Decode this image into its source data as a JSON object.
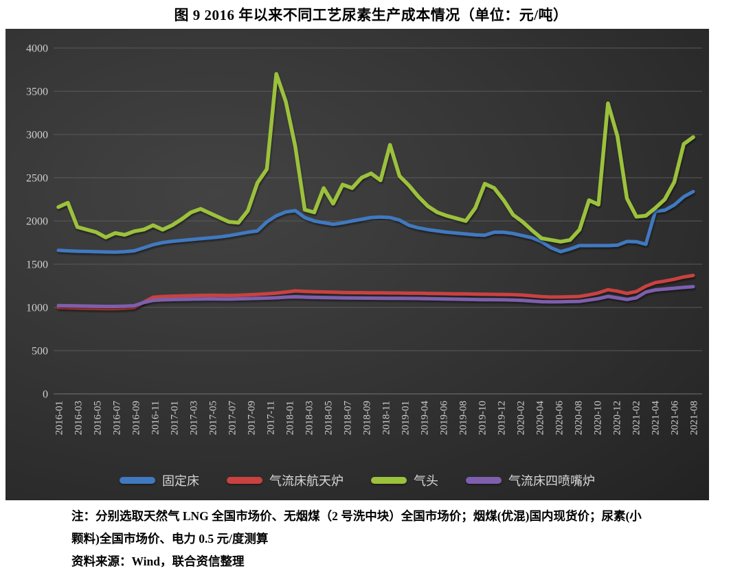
{
  "title": "图 9  2016 年以来不同工艺尿素生产成本情况（单位：元/吨）",
  "notes": {
    "line1": "注：分别选取天然气 LNG 全国市场价、无烟煤（2 号洗中块）全国市场价；烟煤(优混)国内现货价；尿素(小",
    "line2": "颗料)全国市场价、电力 0.5 元/度测算",
    "source": "资料来源：Wind，联合资信整理"
  },
  "colors": {
    "panel_bg_center": "#434343",
    "panel_bg_edge": "#222222",
    "grid": "#5a5a5a",
    "axis_line": "#747474",
    "axis_text": "#cfcfcf",
    "legend_text": "#d8d8d8",
    "title_text": "#000000"
  },
  "chart_data": {
    "type": "line",
    "title": "图 9  2016 年以来不同工艺尿素生产成本情况（单位：元/吨）",
    "xlabel": "",
    "ylabel": "元/吨",
    "ylim": [
      0,
      4000
    ],
    "ytick_step": 500,
    "grid": true,
    "legend_position": "bottom",
    "x_tick_labels": [
      "2016-01",
      "2016-03",
      "2016-05",
      "2016-07",
      "2016-09",
      "2016-11",
      "2017-01",
      "2017-03",
      "2017-05",
      "2017-07",
      "2017-09",
      "2017-11",
      "2018-01",
      "2018-03",
      "2018-05",
      "2018-07",
      "2018-09",
      "2018-11",
      "2019-01",
      "2019-04",
      "2019-06",
      "2019-08",
      "2019-10",
      "2019-12",
      "2020-02",
      "2020-04",
      "2020-06",
      "2020-08",
      "2020-10",
      "2020-12",
      "2021-02",
      "2021-04",
      "2021-06",
      "2021-08"
    ],
    "x": [
      "2016-01",
      "2016-02",
      "2016-03",
      "2016-04",
      "2016-05",
      "2016-06",
      "2016-07",
      "2016-08",
      "2016-09",
      "2016-10",
      "2016-11",
      "2016-12",
      "2017-01",
      "2017-02",
      "2017-03",
      "2017-04",
      "2017-05",
      "2017-06",
      "2017-07",
      "2017-08",
      "2017-09",
      "2017-10",
      "2017-11",
      "2017-12",
      "2018-01",
      "2018-02",
      "2018-03",
      "2018-04",
      "2018-05",
      "2018-06",
      "2018-07",
      "2018-08",
      "2018-09",
      "2018-10",
      "2018-11",
      "2018-12",
      "2019-01",
      "2019-02",
      "2019-03",
      "2019-04",
      "2019-05",
      "2019-06",
      "2019-07",
      "2019-08",
      "2019-09",
      "2019-10",
      "2019-11",
      "2019-12",
      "2020-01",
      "2020-02",
      "2020-03",
      "2020-04",
      "2020-05",
      "2020-06",
      "2020-07",
      "2020-08",
      "2020-09",
      "2020-10",
      "2020-11",
      "2020-12",
      "2021-01",
      "2021-02",
      "2021-03",
      "2021-04",
      "2021-05",
      "2021-06",
      "2021-07",
      "2021-08"
    ],
    "series": [
      {
        "name": "固定床",
        "color": "#4079c0",
        "values": [
          1660,
          1655,
          1650,
          1648,
          1645,
          1642,
          1640,
          1645,
          1655,
          1690,
          1725,
          1750,
          1765,
          1775,
          1785,
          1795,
          1805,
          1815,
          1830,
          1850,
          1870,
          1885,
          1990,
          2060,
          2105,
          2120,
          2040,
          2000,
          1980,
          1962,
          1978,
          2000,
          2020,
          2040,
          2045,
          2040,
          2010,
          1950,
          1920,
          1900,
          1885,
          1870,
          1860,
          1850,
          1840,
          1835,
          1870,
          1870,
          1855,
          1830,
          1805,
          1760,
          1690,
          1645,
          1675,
          1715,
          1715,
          1715,
          1715,
          1720,
          1763,
          1760,
          1730,
          2110,
          2125,
          2185,
          2280,
          2340
        ]
      },
      {
        "name": "气流床航天炉",
        "color": "#c9423f",
        "values": [
          1000,
          996,
          992,
          990,
          988,
          986,
          986,
          990,
          998,
          1060,
          1118,
          1126,
          1130,
          1133,
          1136,
          1139,
          1141,
          1140,
          1138,
          1141,
          1146,
          1151,
          1158,
          1166,
          1178,
          1191,
          1186,
          1182,
          1179,
          1176,
          1173,
          1171,
          1171,
          1169,
          1168,
          1167,
          1167,
          1165,
          1164,
          1162,
          1161,
          1159,
          1157,
          1156,
          1154,
          1153,
          1151,
          1150,
          1148,
          1143,
          1134,
          1125,
          1120,
          1121,
          1123,
          1127,
          1145,
          1168,
          1205,
          1188,
          1162,
          1184,
          1245,
          1287,
          1305,
          1326,
          1352,
          1370
        ]
      },
      {
        "name": "气头",
        "color": "#9cc13c",
        "values": [
          2160,
          2210,
          1930,
          1900,
          1870,
          1810,
          1860,
          1840,
          1880,
          1900,
          1950,
          1900,
          1950,
          2020,
          2100,
          2140,
          2090,
          2040,
          1990,
          1980,
          2120,
          2440,
          2600,
          3700,
          3380,
          2860,
          2130,
          2100,
          2380,
          2200,
          2420,
          2380,
          2500,
          2550,
          2470,
          2880,
          2520,
          2410,
          2280,
          2170,
          2100,
          2060,
          2030,
          2000,
          2150,
          2430,
          2380,
          2240,
          2070,
          1990,
          1890,
          1800,
          1780,
          1760,
          1780,
          1900,
          2240,
          2190,
          3360,
          2980,
          2260,
          2050,
          2060,
          2150,
          2250,
          2450,
          2890,
          2970
        ]
      },
      {
        "name": "气流床四喷嘴炉",
        "color": "#7d5fae",
        "values": [
          1022,
          1020,
          1018,
          1016,
          1014,
          1012,
          1012,
          1015,
          1020,
          1056,
          1082,
          1088,
          1091,
          1093,
          1095,
          1097,
          1099,
          1097,
          1096,
          1099,
          1102,
          1105,
          1108,
          1112,
          1119,
          1123,
          1119,
          1116,
          1114,
          1112,
          1110,
          1109,
          1108,
          1107,
          1106,
          1105,
          1105,
          1104,
          1103,
          1101,
          1099,
          1097,
          1095,
          1093,
          1091,
          1090,
          1089,
          1088,
          1086,
          1081,
          1073,
          1067,
          1064,
          1065,
          1068,
          1071,
          1086,
          1102,
          1128,
          1110,
          1092,
          1112,
          1178,
          1202,
          1212,
          1222,
          1232,
          1240
        ]
      }
    ]
  }
}
